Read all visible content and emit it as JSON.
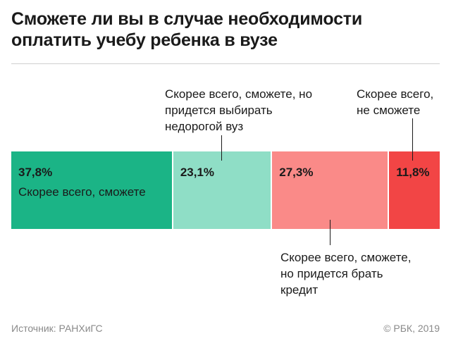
{
  "chart_data": {
    "type": "bar",
    "stacked": true,
    "orientation": "horizontal",
    "title_lines": [
      "Сможете ли вы в случае необходимости",
      "оплатить учебу ребенка в вузе"
    ],
    "segments": [
      {
        "value": 37.8,
        "value_label": "37,8%",
        "label": "Скорее всего, сможете",
        "color": "#1bb486",
        "label_position": "inside"
      },
      {
        "value": 23.1,
        "value_label": "23,1%",
        "label": "Скорее всего, сможете, но придется выбирать недорогой вуз",
        "color": "#8fdec6",
        "label_position": "above"
      },
      {
        "value": 27.3,
        "value_label": "27,3%",
        "label": "Скорее всего, сможете, но придется брать кредит",
        "color": "#fa8a88",
        "label_position": "below"
      },
      {
        "value": 11.8,
        "value_label": "11,8%",
        "label": "Скорее всего, не сможете",
        "color": "#f24545",
        "label_position": "above"
      }
    ]
  },
  "footer": {
    "source": "Источник: РАНХиГС",
    "copyright": "© РБК, 2019"
  }
}
